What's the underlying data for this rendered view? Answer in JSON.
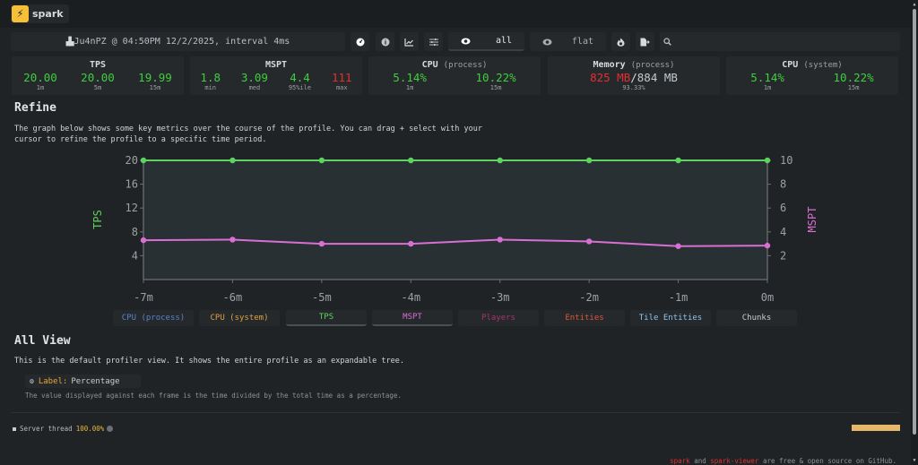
{
  "header": {
    "logo_icon": "lightning-bolt-icon",
    "logo_glyph": "⚡",
    "app_name": "spark"
  },
  "toolbar": {
    "profile_info": "Ju4nPZ @ 04:50PM 12/2/2025, interval 4ms",
    "profile_icon_glyph": "▟▙",
    "buttons": [
      {
        "icon": "gauge-icon",
        "glyph": "◉"
      },
      {
        "icon": "info-icon",
        "glyph": "ⓘ"
      },
      {
        "icon": "chart-line-icon",
        "glyph": "📈"
      },
      {
        "icon": "sliders-icon",
        "glyph": "☰"
      }
    ],
    "view_all_label": "all",
    "view_flat_label": "flat",
    "eye_glyph": "◉",
    "fire_glyph": "●",
    "export_glyph": "▶",
    "search_glyph": "⌕",
    "search_placeholder": ""
  },
  "widgets": {
    "tps": {
      "title": "TPS",
      "values": [
        {
          "value": "20.00",
          "label": "1m"
        },
        {
          "value": "20.00",
          "label": "5m"
        },
        {
          "value": "19.99",
          "label": "15m"
        }
      ]
    },
    "mspt": {
      "title": "MSPT",
      "values": [
        {
          "value": "1.8",
          "label": "min"
        },
        {
          "value": "3.09",
          "label": "med"
        },
        {
          "value": "4.4",
          "label": "95%ile"
        },
        {
          "value": "111",
          "label": "max"
        }
      ]
    },
    "cpu_process": {
      "title": "CPU",
      "subtitle": "(process)",
      "values": [
        {
          "value": "5.14%",
          "label": "1m"
        },
        {
          "value": "10.22%",
          "label": "15m"
        }
      ]
    },
    "memory": {
      "title": "Memory",
      "subtitle": "(process)",
      "used": "825 MB",
      "separator": "/",
      "total": "884 MB",
      "percent": "93.33%"
    },
    "cpu_system": {
      "title": "CPU",
      "subtitle": "(system)",
      "values": [
        {
          "value": "5.14%",
          "label": "1m"
        },
        {
          "value": "10.22%",
          "label": "15m"
        }
      ]
    }
  },
  "refine": {
    "heading": "Refine",
    "description_line1": "The graph below shows some key metrics over the course of the profile. You can drag + select with your",
    "description_line2": "cursor to refine the profile to a specific time period."
  },
  "chart_data": {
    "type": "line",
    "title": "",
    "x": [
      "-7m",
      "-6m",
      "-5m",
      "-4m",
      "-3m",
      "-2m",
      "-1m",
      "0m"
    ],
    "series": [
      {
        "name": "TPS",
        "axis": "left",
        "color": "#5fd35f",
        "values": [
          20,
          20,
          20,
          20,
          20,
          20,
          20,
          20
        ]
      },
      {
        "name": "MSPT",
        "axis": "right",
        "color": "#d96fd3",
        "values": [
          3.3,
          3.35,
          3.0,
          3.0,
          3.35,
          3.2,
          2.8,
          2.85
        ]
      }
    ],
    "ylabel_left": "TPS",
    "ylabel_right": "MSPT",
    "yticks_left": [
      4,
      8,
      12,
      16,
      20
    ],
    "yticks_right": [
      2,
      4,
      6,
      8,
      10
    ],
    "ylim_left": [
      0,
      20
    ],
    "ylim_right": [
      0,
      10
    ],
    "grid": false
  },
  "legend": [
    {
      "label": "CPU (process)",
      "color": "#5a82c8",
      "active": false
    },
    {
      "label": "CPU (system)",
      "color": "#e0a040",
      "active": false
    },
    {
      "label": "TPS",
      "color": "#5fd35f",
      "active": true
    },
    {
      "label": "MSPT",
      "color": "#d96fd3",
      "active": true
    },
    {
      "label": "Players",
      "color": "#a8346a",
      "active": false
    },
    {
      "label": "Entities",
      "color": "#e0553a",
      "active": false
    },
    {
      "label": "Tile Entities",
      "color": "#8fc3ec",
      "active": false
    },
    {
      "label": "Chunks",
      "color": "#c9cdd0",
      "active": false
    }
  ],
  "all_view": {
    "heading": "All View",
    "description": "This is the default profiler view. It shows the entire profile as an expandable tree.",
    "label_key": "Label:",
    "label_value": "Percentage",
    "label_icon_glyph": "⚙",
    "label_description": "The value displayed against each frame is the time divided by the total time as a percentage."
  },
  "tree": {
    "root_name": "Server thread",
    "root_percent": "100.00%"
  },
  "footer": {
    "link1": "spark",
    "text1": " and ",
    "link2": "spark-viewer",
    "text2": " are free & open source on GitHub."
  }
}
